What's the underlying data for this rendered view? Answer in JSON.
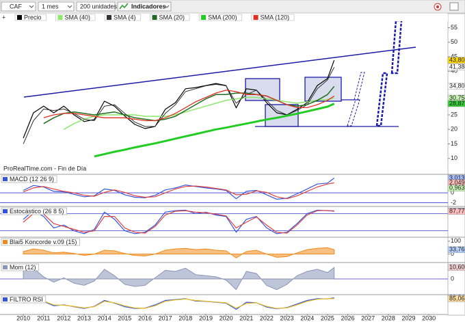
{
  "toolbar": {
    "symbol": "CAF",
    "period": "1 mes",
    "units": "200 unidades",
    "indicators": "Indicadores"
  },
  "chart_data": [
    {
      "type": "line",
      "source": "ProRealTime.com - Fin de Día",
      "xlim": [
        2008.85,
        2030.94
      ],
      "xticks": [
        2010,
        2011,
        2012,
        2013,
        2014,
        2015,
        2016,
        2017,
        2018,
        2019,
        2020,
        2021,
        2022,
        2023,
        2024,
        2025,
        2026,
        2027,
        2028,
        2029,
        2030
      ],
      "ylim": [
        5,
        57
      ],
      "yticks": [
        10,
        15,
        20,
        25,
        30,
        35,
        40,
        45,
        50,
        55
      ],
      "grid": false,
      "x": [
        2010,
        2010.5,
        2011,
        2011.5,
        2012,
        2012.5,
        2013,
        2013.5,
        2014,
        2014.5,
        2015,
        2015.5,
        2016,
        2016.5,
        2017,
        2017.5,
        2018,
        2018.5,
        2019,
        2019.5,
        2020,
        2020.5,
        2021,
        2021.5,
        2022,
        2022.5,
        2023,
        2023.5,
        2024,
        2024.5,
        2025,
        2025.33
      ],
      "series": [
        {
          "name": "Precio",
          "color": "#000000",
          "line_width": 1.2,
          "values": [
            17,
            25.7,
            28,
            25.7,
            28,
            25,
            22.7,
            23.4,
            29.7,
            28,
            24.6,
            21.7,
            20.3,
            21,
            26.9,
            29.2,
            34,
            34.4,
            35.1,
            35.8,
            35.1,
            27.4,
            34,
            33.5,
            29.2,
            25.7,
            25,
            26.9,
            29.2,
            35.1,
            37.5,
            43.8
          ]
        },
        {
          "name": "SMA (40)",
          "color": "#8ee86a",
          "line_width": 1.5,
          "values": [
            null,
            null,
            null,
            null,
            20,
            22,
            23.5,
            24.5,
            25,
            25,
            25,
            25,
            24.5,
            24.5,
            24.5,
            25,
            26,
            27,
            28,
            29,
            30,
            30.5,
            31,
            31,
            30.5,
            30,
            29.5,
            29,
            29.5,
            30,
            30.3,
            30.754
          ]
        },
        {
          "name": "SMA (4)",
          "color": "#333333",
          "line_width": 1,
          "values": [
            15,
            23,
            27,
            26.5,
            27,
            25.5,
            23.5,
            23,
            28,
            28.5,
            25.5,
            22.5,
            21,
            21,
            25.5,
            28.5,
            33,
            34,
            35,
            35.5,
            35,
            29,
            32,
            33.5,
            30,
            26.5,
            25,
            26.5,
            28.5,
            34,
            37,
            41.388
          ]
        },
        {
          "name": "SMA (20)",
          "color": "#1f6b1f",
          "line_width": 1.5,
          "values": [
            null,
            null,
            22,
            24,
            25.5,
            26,
            25.5,
            25,
            25.5,
            26,
            25,
            24,
            23.5,
            23,
            23.5,
            24.5,
            26.5,
            28.5,
            30.5,
            32,
            32,
            32.5,
            32.5,
            32,
            31.5,
            30,
            28.5,
            28,
            28.5,
            30,
            32,
            34.805
          ]
        },
        {
          "name": "SMA (200)",
          "color": "#22cc22",
          "line_width": 3,
          "values": [
            null,
            null,
            null,
            null,
            null,
            null,
            null,
            10.7,
            11.5,
            12.3,
            13,
            13.8,
            14.5,
            15.2,
            16,
            16.8,
            17.6,
            18.4,
            19.2,
            20,
            20.6,
            21.3,
            22,
            22.7,
            23.4,
            24,
            24.7,
            25.4,
            26.2,
            27,
            27.8,
            28.87
          ]
        },
        {
          "name": "SMA (120)",
          "color": "#e03020",
          "line_width": 1.3,
          "values": [
            null,
            null,
            24,
            25,
            25.5,
            25.5,
            25,
            24.5,
            24,
            24,
            24,
            23.5,
            23,
            23,
            24,
            25.5,
            27.5,
            29.5,
            31,
            32.5,
            33.5,
            33,
            32,
            32,
            31.5,
            30,
            28.5,
            27.5,
            27.5,
            28.5,
            30,
            31.5
          ]
        }
      ],
      "price_labels": [
        {
          "value": 43.8,
          "label": "43,80",
          "color": "#ffd800"
        },
        {
          "value": 41.388,
          "label": "41,388",
          "color": "#ffffff"
        },
        {
          "value": 34.805,
          "label": "34,805",
          "color": "#ffffff"
        },
        {
          "value": 30.754,
          "label": "30,754",
          "color": "#c8f5b5"
        },
        {
          "value": 28.87,
          "label": "28,87",
          "color": "#33cc33"
        }
      ]
    },
    {
      "type": "line",
      "title": "MACD (12 26 9)",
      "ylim": [
        -2.5,
        3.5
      ],
      "yticks": [
        -2,
        0
      ],
      "grid": true,
      "x": [
        2010,
        2010.5,
        2011,
        2011.5,
        2012,
        2012.5,
        2013,
        2013.5,
        2014,
        2014.5,
        2015,
        2015.5,
        2016,
        2016.5,
        2017,
        2017.5,
        2018,
        2018.5,
        2019,
        2019.5,
        2020,
        2020.5,
        2021,
        2021.5,
        2022,
        2022.5,
        2023,
        2023.5,
        2024,
        2024.5,
        2025,
        2025.33
      ],
      "series": [
        {
          "color": "#3355dd",
          "values": [
            0.5,
            1.5,
            1.2,
            0.3,
            0.2,
            -0.3,
            -0.8,
            -0.6,
            0.8,
            0.5,
            -0.4,
            -0.9,
            -1.0,
            -0.5,
            0.6,
            1.0,
            1.6,
            1.3,
            1.0,
            0.8,
            0.5,
            -1.2,
            0.3,
            0.5,
            -0.4,
            -1.3,
            -1.1,
            -0.2,
            0.8,
            1.8,
            2.0,
            3.0131
          ]
        },
        {
          "color": "#e04040",
          "values": [
            0.2,
            1.0,
            1.3,
            0.8,
            0.3,
            0,
            -0.5,
            -0.7,
            0.1,
            0.6,
            0.1,
            -0.6,
            -0.9,
            -0.8,
            0,
            0.8,
            1.3,
            1.4,
            1.2,
            0.9,
            0.6,
            -0.4,
            -0.3,
            0.4,
            0.1,
            -0.8,
            -1.2,
            -0.6,
            0.3,
            1.2,
            1.8,
            2.0492
          ]
        }
      ],
      "price_labels": [
        {
          "value": 3.0131,
          "label": "3,0131",
          "color": "#a9bfff"
        },
        {
          "value": 2.0492,
          "label": "2,0492",
          "color": "#ffbcbc"
        },
        {
          "value": 0.9639,
          "label": "0,9639",
          "color": "#c8f5b5"
        }
      ]
    },
    {
      "type": "line",
      "title": "Estocástico (26 8 5)",
      "ylim": [
        0,
        100
      ],
      "levels": [
        20,
        80
      ],
      "x": [
        2010,
        2010.5,
        2011,
        2011.5,
        2012,
        2012.5,
        2013,
        2013.5,
        2014,
        2014.5,
        2015,
        2015.5,
        2016,
        2016.5,
        2017,
        2017.5,
        2018,
        2018.5,
        2019,
        2019.5,
        2020,
        2020.5,
        2021,
        2021.5,
        2022,
        2022.5,
        2023,
        2023.5,
        2024,
        2024.5,
        2025,
        2025.33
      ],
      "series": [
        {
          "color": "#3355dd",
          "values": [
            60,
            90,
            70,
            30,
            40,
            20,
            10,
            25,
            85,
            60,
            20,
            10,
            15,
            40,
            85,
            90,
            92,
            80,
            85,
            75,
            70,
            15,
            60,
            70,
            30,
            10,
            15,
            45,
            80,
            92,
            90,
            89.433
          ]
        },
        {
          "color": "#e04040",
          "values": [
            50,
            80,
            78,
            45,
            35,
            25,
            15,
            20,
            70,
            70,
            30,
            15,
            12,
            35,
            75,
            88,
            90,
            85,
            83,
            78,
            72,
            30,
            50,
            68,
            40,
            15,
            12,
            40,
            75,
            90,
            91,
            87.779
          ]
        }
      ],
      "price_labels": [
        {
          "value": 89.433,
          "label": "89,433",
          "color": "#a9bfff"
        },
        {
          "value": 87.779,
          "label": "87,779",
          "color": "#ffbcbc"
        }
      ]
    },
    {
      "type": "area",
      "title": "Blai5 Koncorde v.09 (15)",
      "ylim": [
        -60,
        120
      ],
      "yticks": [
        0,
        100
      ],
      "grid": false,
      "x": [
        2010,
        2010.5,
        2011,
        2011.5,
        2012,
        2012.5,
        2013,
        2013.5,
        2014,
        2014.5,
        2015,
        2015.5,
        2016,
        2016.5,
        2017,
        2017.5,
        2018,
        2018.5,
        2019,
        2019.5,
        2020,
        2020.5,
        2021,
        2021.5,
        2022,
        2022.5,
        2023,
        2023.5,
        2024,
        2024.5,
        2025,
        2025.33
      ],
      "series": [
        {
          "color": "#f08a1c",
          "values": [
            20,
            40,
            30,
            10,
            15,
            5,
            -10,
            0,
            30,
            25,
            5,
            -10,
            -15,
            0,
            30,
            40,
            45,
            35,
            40,
            30,
            25,
            -30,
            20,
            30,
            0,
            -25,
            -20,
            10,
            35,
            45,
            50,
            33.763
          ]
        }
      ],
      "price_labels": [
        {
          "value": 33.763,
          "label": "33,763",
          "color": "#b3d1ff"
        }
      ]
    },
    {
      "type": "area",
      "title": "Mom (12)",
      "ylim": [
        -14,
        14
      ],
      "yticks": [
        0
      ],
      "grid": true,
      "x": [
        2010,
        2010.5,
        2011,
        2011.5,
        2012,
        2012.5,
        2013,
        2013.5,
        2014,
        2014.5,
        2015,
        2015.5,
        2016,
        2016.5,
        2017,
        2017.5,
        2018,
        2018.5,
        2019,
        2019.5,
        2020,
        2020.5,
        2021,
        2021.5,
        2022,
        2022.5,
        2023,
        2023.5,
        2024,
        2024.5,
        2025,
        2025.33
      ],
      "series": [
        {
          "color": "#8a95b8",
          "values": [
            8,
            10,
            2,
            -3,
            1,
            -4,
            -6,
            -2,
            9,
            3,
            -5,
            -7,
            -6,
            1,
            8,
            7,
            10,
            4,
            3,
            2,
            -1,
            -10,
            7,
            5,
            -6,
            -10,
            -5,
            3,
            7,
            9,
            6,
            10.6
          ]
        }
      ],
      "price_labels": [
        {
          "value": 10.6,
          "label": "10,600",
          "color": "#f3d0d0"
        }
      ]
    },
    {
      "type": "line",
      "title": "FILTRO RSI",
      "ylim": [
        0,
        100
      ],
      "x": [
        2010,
        2010.5,
        2011,
        2011.5,
        2012,
        2012.5,
        2013,
        2013.5,
        2014,
        2014.5,
        2015,
        2015.5,
        2016,
        2016.5,
        2017,
        2017.5,
        2018,
        2018.5,
        2019,
        2019.5,
        2020,
        2020.5,
        2021,
        2021.5,
        2022,
        2022.5,
        2023,
        2023.5,
        2024,
        2024.5,
        2025,
        2025.33
      ],
      "series": [
        {
          "color": "#3355dd",
          "values": [
            65,
            80,
            70,
            45,
            50,
            40,
            30,
            42,
            75,
            60,
            40,
            30,
            32,
            50,
            75,
            80,
            85,
            72,
            70,
            65,
            60,
            25,
            65,
            62,
            38,
            28,
            35,
            55,
            75,
            85,
            84,
            89.848
          ]
        },
        {
          "color": "#f0c020",
          "values": [
            60,
            75,
            72,
            50,
            48,
            42,
            33,
            40,
            70,
            62,
            45,
            33,
            31,
            45,
            70,
            78,
            83,
            75,
            71,
            66,
            62,
            32,
            58,
            62,
            42,
            30,
            33,
            50,
            70,
            82,
            85,
            85.066
          ]
        }
      ],
      "price_labels": [
        {
          "value": 89.848,
          "label": "89,848",
          "color": "#bcd0ff"
        },
        {
          "value": 85.066,
          "label": "85,066",
          "color": "#ffe0a0"
        }
      ]
    }
  ]
}
